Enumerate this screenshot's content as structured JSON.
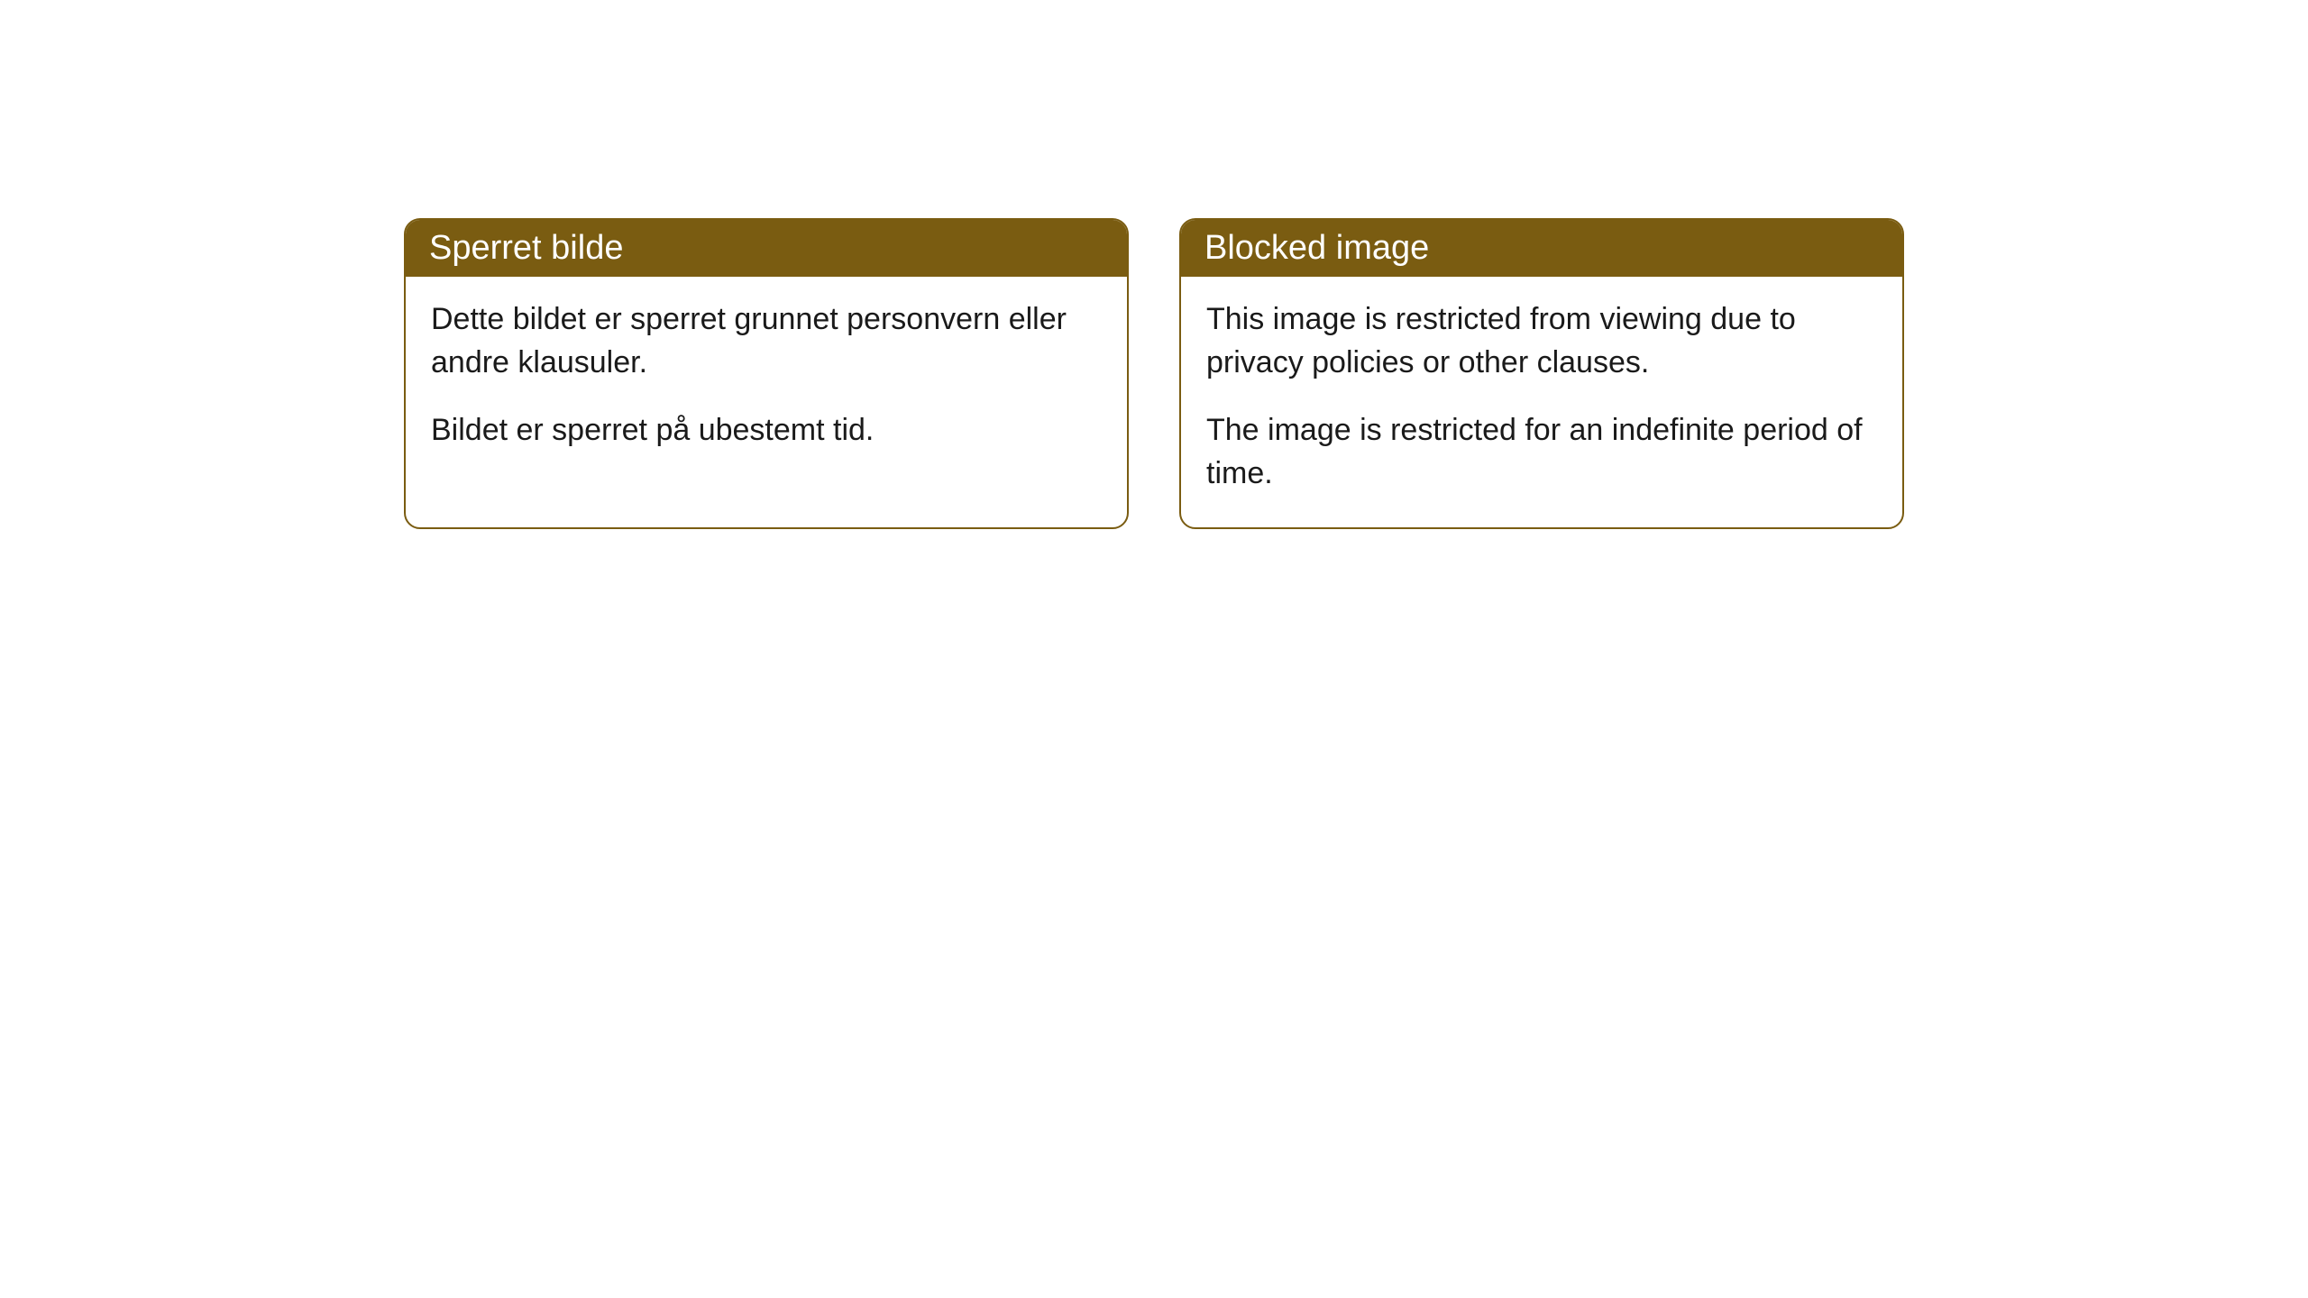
{
  "cards": [
    {
      "title": "Sperret bilde",
      "paragraph1": "Dette bildet er sperret grunnet personvern eller andre klausuler.",
      "paragraph2": "Bildet er sperret på ubestemt tid."
    },
    {
      "title": "Blocked image",
      "paragraph1": "This image is restricted from viewing due to privacy policies or other clauses.",
      "paragraph2": "The image is restricted for an indefinite period of time."
    }
  ],
  "style": {
    "header_bg": "#7a5c11",
    "header_text_color": "#ffffff",
    "border_color": "#7a5c11",
    "body_bg": "#ffffff",
    "body_text_color": "#1a1a1a",
    "border_radius": 18,
    "header_fontsize": 38,
    "body_fontsize": 34
  }
}
